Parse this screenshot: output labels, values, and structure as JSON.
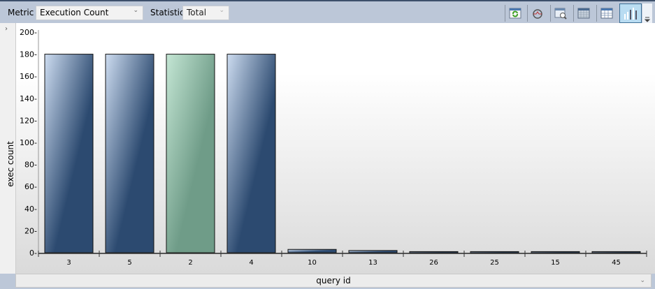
{
  "toolbar": {
    "metric_label": "Metric",
    "metric_value": "Execution Count",
    "statistic_label": "Statistic",
    "statistic_value": "Total",
    "icons": [
      "refresh-icon",
      "track-query-icon",
      "view-plan-icon",
      "grid-icon",
      "table-icon",
      "chart-icon"
    ]
  },
  "bottom": {
    "axis_select": "query id"
  },
  "chart_data": {
    "type": "bar",
    "xlabel": "query id",
    "ylabel": "exec count",
    "categories": [
      "3",
      "5",
      "2",
      "4",
      "10",
      "13",
      "26",
      "25",
      "15",
      "45"
    ],
    "values": [
      180,
      180,
      180,
      180,
      3,
      2,
      1,
      1,
      1,
      1
    ],
    "highlighted": "2",
    "ylim": [
      0,
      200
    ],
    "yticks": [
      0,
      20,
      40,
      60,
      80,
      100,
      120,
      140,
      160,
      180,
      200
    ],
    "colors": {
      "bar": "#2c4a70",
      "bar_light": "#cddcf0",
      "highlight": "#6f9c88",
      "highlight_light": "#c4e6d4"
    },
    "grid": false
  }
}
